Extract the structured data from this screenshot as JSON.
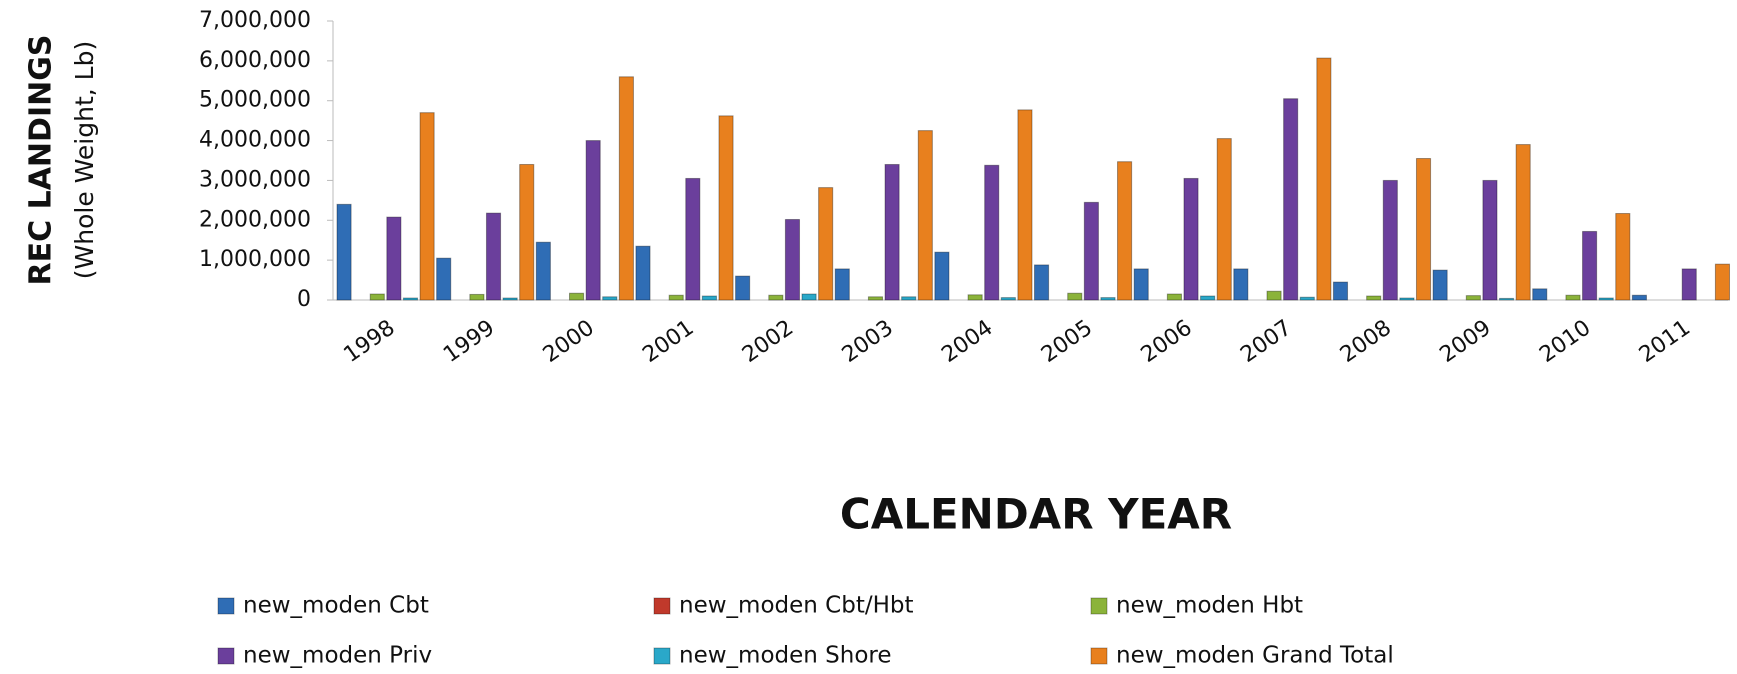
{
  "chart_data": {
    "type": "bar",
    "y_axis_title": [
      "REC LANDINGS",
      "(Whole Weight, Lb)"
    ],
    "x_axis_title": "CALENDAR YEAR",
    "categories": [
      "1998",
      "1999",
      "2000",
      "2001",
      "2002",
      "2003",
      "2004",
      "2005",
      "2006",
      "2007",
      "2008",
      "2009",
      "2010",
      "2011"
    ],
    "series": [
      {
        "name": "new_moden Cbt",
        "color": "#2f6db5",
        "values": [
          2400000,
          1050000,
          1450000,
          1350000,
          600000,
          780000,
          1200000,
          880000,
          780000,
          780000,
          450000,
          750000,
          280000,
          120000
        ]
      },
      {
        "name": "new_moden Cbt/Hbt",
        "color": "#c0392b",
        "values": [
          0,
          0,
          0,
          0,
          0,
          0,
          0,
          0,
          0,
          0,
          0,
          0,
          0,
          0
        ]
      },
      {
        "name": "new_moden Hbt",
        "color": "#8bb33a",
        "values": [
          150000,
          140000,
          170000,
          120000,
          120000,
          80000,
          130000,
          170000,
          150000,
          220000,
          100000,
          110000,
          120000,
          0
        ]
      },
      {
        "name": "new_moden Priv",
        "color": "#6b3f9c",
        "values": [
          2080000,
          2180000,
          4000000,
          3050000,
          2020000,
          3400000,
          3380000,
          2450000,
          3050000,
          5050000,
          3000000,
          3000000,
          1720000,
          780000
        ]
      },
      {
        "name": "new_moden Shore",
        "color": "#2aa8c9",
        "values": [
          50000,
          50000,
          80000,
          100000,
          150000,
          80000,
          60000,
          60000,
          100000,
          70000,
          50000,
          40000,
          50000,
          0
        ]
      },
      {
        "name": "new_moden Grand Total",
        "color": "#e8801e",
        "values": [
          4700000,
          3400000,
          5600000,
          4620000,
          2820000,
          4250000,
          4770000,
          3470000,
          4050000,
          6070000,
          3550000,
          3900000,
          2170000,
          900000
        ]
      }
    ],
    "ylim": [
      0,
      7000000
    ],
    "yticks": [
      0,
      {
        "value": 1000000,
        "label": "1,000,000"
      },
      {
        "value": 2000000,
        "label": "2,000,000"
      },
      {
        "value": 3000000,
        "label": "3,000,000"
      },
      {
        "value": 4000000,
        "label": "4,000,000"
      },
      {
        "value": 5000000,
        "label": "5,000,000"
      },
      {
        "value": 6000000,
        "label": "6,000,000"
      },
      {
        "value": 7000000,
        "label": "7,000,000"
      }
    ],
    "grid": false,
    "legend": "bottom"
  }
}
